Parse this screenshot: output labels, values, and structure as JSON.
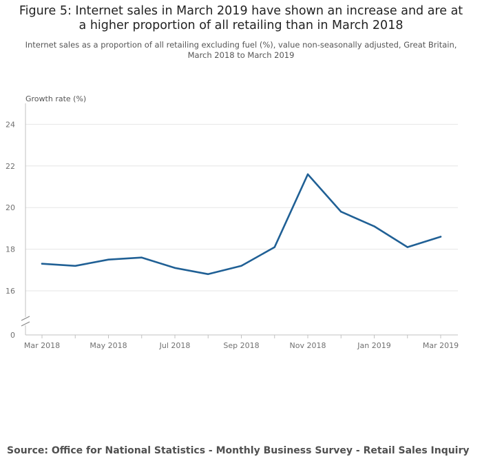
{
  "title": "Figure 5: Internet sales in March 2019 have shown an increase and are at a higher proportion of all retailing than in March 2018",
  "subtitle": "Internet sales as a proportion of all retailing excluding fuel (%), value non-seasonally adjusted, Great Britain, March 2018 to March 2019",
  "source": "Source: Office for National Statistics - Monthly Business Survey - Retail Sales Inquiry",
  "colors": {
    "line": "#206095",
    "grid": "#e6e6e6",
    "axis": "#c0c0c0",
    "text": "#707070"
  },
  "chart_data": {
    "type": "line",
    "title": "Figure 5: Internet sales in March 2019 have shown an increase and are at a higher proportion of all retailing than in March 2018",
    "ylabel": "Growth rate (%)",
    "xlabel": "",
    "ylim": [
      15,
      25
    ],
    "y_break": true,
    "y_break_baseline": "0",
    "y_ticks": [
      16,
      18,
      20,
      22,
      24
    ],
    "categories": [
      "Mar 2018",
      "Apr 2018",
      "May 2018",
      "Jun 2018",
      "Jul 2018",
      "Aug 2018",
      "Sep 2018",
      "Oct 2018",
      "Nov 2018",
      "Dec 2018",
      "Jan 2019",
      "Feb 2019",
      "Mar 2019"
    ],
    "x_tick_labels": [
      "Mar 2018",
      "May 2018",
      "Jul 2018",
      "Sep 2018",
      "Nov 2018",
      "Jan 2019",
      "Mar 2019"
    ],
    "series": [
      {
        "name": "Internet sales as a proportion of all retailing excluding fuel (%)",
        "values": [
          17.3,
          17.2,
          17.5,
          17.6,
          17.1,
          16.8,
          17.2,
          18.1,
          21.6,
          19.8,
          19.1,
          18.1,
          18.6
        ]
      }
    ],
    "grid": true
  }
}
